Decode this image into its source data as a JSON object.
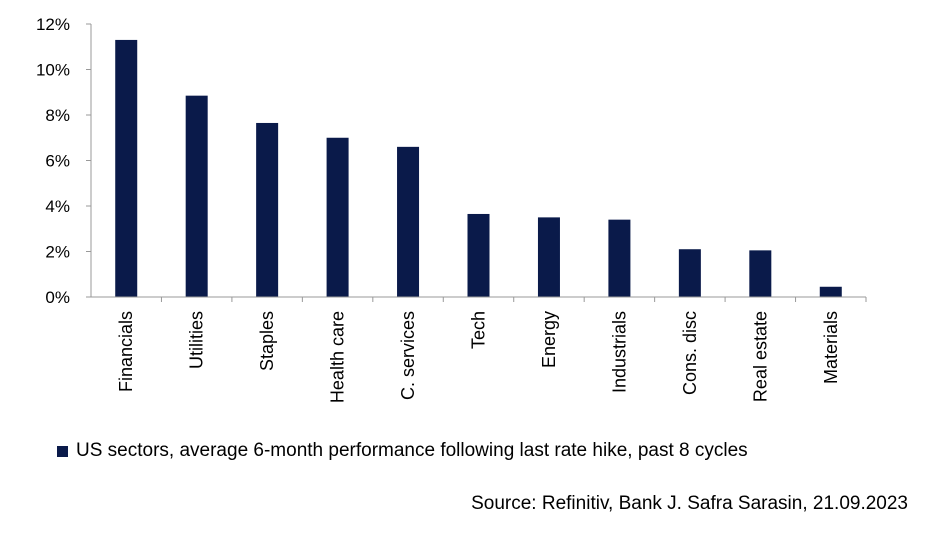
{
  "chart_data": {
    "type": "bar",
    "categories": [
      "Financials",
      "Utilities",
      "Staples",
      "Health care",
      "C. services",
      "Tech",
      "Energy",
      "Industrials",
      "Cons. disc",
      "Real estate",
      "Materials"
    ],
    "series": [
      {
        "name": "US sectors, average 6-month performance following last rate hike, past 8 cycles",
        "values": [
          11.3,
          8.85,
          7.65,
          7.0,
          6.6,
          3.65,
          3.5,
          3.4,
          2.1,
          2.05,
          0.45
        ],
        "color": "#0a1a4a"
      }
    ],
    "ylim": [
      0,
      12
    ],
    "yticks": [
      0,
      2,
      4,
      6,
      8,
      10,
      12
    ],
    "ytick_labels": [
      "0%",
      "2%",
      "4%",
      "6%",
      "8%",
      "10%",
      "12%"
    ],
    "grid": false,
    "legend_position": "bottom-left",
    "source": "Source: Refinitiv, Bank J. Safra Sarasin, 21.09.2023"
  }
}
